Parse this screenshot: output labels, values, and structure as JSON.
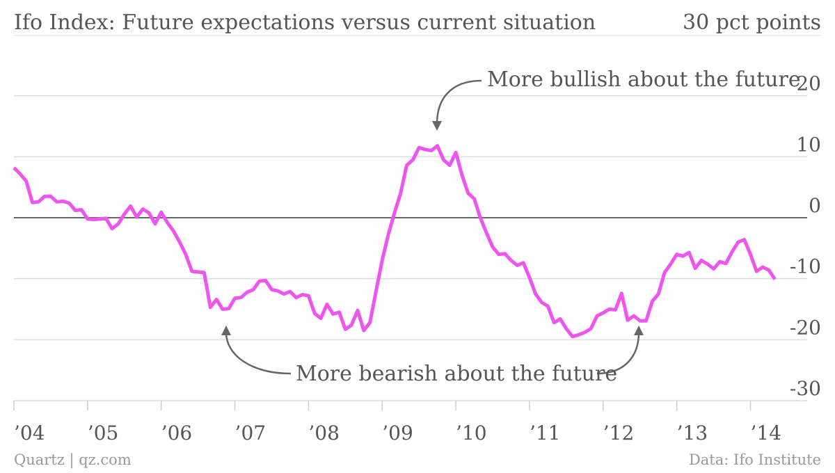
{
  "chart_data": {
    "type": "line",
    "title": "Ifo Index: Future expectations versus current situation",
    "subtitle": "30 pct points",
    "source": "Data: Ifo Institute",
    "credit": "Quartz | qz.com",
    "annotations": [
      "More bullish about the future",
      "More bearish about the future"
    ],
    "x": [
      2004,
      2004.083,
      2004.167,
      2004.25,
      2004.333,
      2004.417,
      2004.5,
      2004.583,
      2004.667,
      2004.75,
      2004.833,
      2004.917,
      2005,
      2005.083,
      2005.167,
      2005.25,
      2005.333,
      2005.417,
      2005.5,
      2005.583,
      2005.667,
      2005.75,
      2005.833,
      2005.917,
      2006,
      2006.083,
      2006.167,
      2006.25,
      2006.333,
      2006.417,
      2006.5,
      2006.583,
      2006.667,
      2006.75,
      2006.833,
      2006.917,
      2007,
      2007.083,
      2007.167,
      2007.25,
      2007.333,
      2007.417,
      2007.5,
      2007.583,
      2007.667,
      2007.75,
      2007.833,
      2007.917,
      2008,
      2008.083,
      2008.167,
      2008.25,
      2008.333,
      2008.417,
      2008.5,
      2008.583,
      2008.667,
      2008.75,
      2008.833,
      2008.917,
      2009,
      2009.083,
      2009.167,
      2009.25,
      2009.333,
      2009.417,
      2009.5,
      2009.583,
      2009.667,
      2009.75,
      2009.833,
      2009.917,
      2010,
      2010.083,
      2010.167,
      2010.25,
      2010.333,
      2010.417,
      2010.5,
      2010.583,
      2010.667,
      2010.75,
      2010.833,
      2010.917,
      2011,
      2011.083,
      2011.167,
      2011.25,
      2011.333,
      2011.417,
      2011.5,
      2011.583,
      2011.667,
      2011.75,
      2011.833,
      2011.917,
      2012,
      2012.083,
      2012.167,
      2012.25,
      2012.333,
      2012.417,
      2012.5,
      2012.583,
      2012.667,
      2012.75,
      2012.833,
      2012.917,
      2013,
      2013.083,
      2013.167,
      2013.25,
      2013.333,
      2013.417,
      2013.5,
      2013.583,
      2013.667,
      2013.75,
      2013.833,
      2013.917,
      2014,
      2014.083,
      2014.167,
      2014.25,
      2014.333
    ],
    "series": [
      {
        "color": "#ee55ee",
        "values": [
          8.2,
          7.2,
          6,
          2.5,
          2.6,
          3.5,
          3.5,
          2.6,
          2.7,
          2.4,
          1.2,
          1.3,
          -0.2,
          -0.3,
          -0.2,
          -0.1,
          -1.8,
          -1,
          0.6,
          1.9,
          0.1,
          1.4,
          0.8,
          -1,
          0.9,
          -0.8,
          -2.2,
          -4,
          -6,
          -8.8,
          -8.9,
          -9,
          -14.7,
          -13.4,
          -15,
          -14.9,
          -13.2,
          -13.1,
          -12.2,
          -11.8,
          -10.4,
          -10.3,
          -11.8,
          -12,
          -12.5,
          -12.1,
          -13.1,
          -12.6,
          -12.8,
          -15.7,
          -16.5,
          -14.2,
          -15.8,
          -15.5,
          -18.3,
          -17.6,
          -15.2,
          -18.5,
          -17.2,
          -12,
          -7,
          -2.8,
          0.8,
          4,
          8.6,
          9.5,
          11.5,
          11.2,
          11,
          11.8,
          9.5,
          8.6,
          10.7,
          7,
          4,
          3.1,
          0,
          -2.5,
          -4.8,
          -6,
          -5.9,
          -7,
          -7.8,
          -7.4,
          -9.8,
          -12.5,
          -13.9,
          -14.5,
          -17.2,
          -16.6,
          -18.2,
          -19.5,
          -19.2,
          -18.8,
          -18.2,
          -16.1,
          -15.6,
          -15,
          -15.1,
          -12.4,
          -16.8,
          -16.1,
          -16.9,
          -16.9,
          -13.7,
          -12.5,
          -9,
          -7.6,
          -6,
          -6.3,
          -5.7,
          -8.3,
          -7,
          -7.6,
          -8.4,
          -7.2,
          -7.5,
          -5.6,
          -4,
          -3.6,
          -6,
          -8.8,
          -8.1,
          -8.6,
          -10.1
        ]
      }
    ],
    "xlim": [
      2004,
      2014.77
    ],
    "xticks": [
      {
        "value": 2004,
        "label": "’04"
      },
      {
        "value": 2005,
        "label": "’05"
      },
      {
        "value": 2006,
        "label": "’06"
      },
      {
        "value": 2007,
        "label": "’07"
      },
      {
        "value": 2008,
        "label": "’08"
      },
      {
        "value": 2009,
        "label": "’09"
      },
      {
        "value": 2010,
        "label": "’10"
      },
      {
        "value": 2011,
        "label": "’11"
      },
      {
        "value": 2012,
        "label": "’12"
      },
      {
        "value": 2013,
        "label": "’13"
      },
      {
        "value": 2014,
        "label": "’14"
      }
    ],
    "ylim": [
      -30,
      30
    ],
    "yticks": [
      -30,
      -20,
      -10,
      0,
      10,
      20
    ],
    "grid": true
  }
}
